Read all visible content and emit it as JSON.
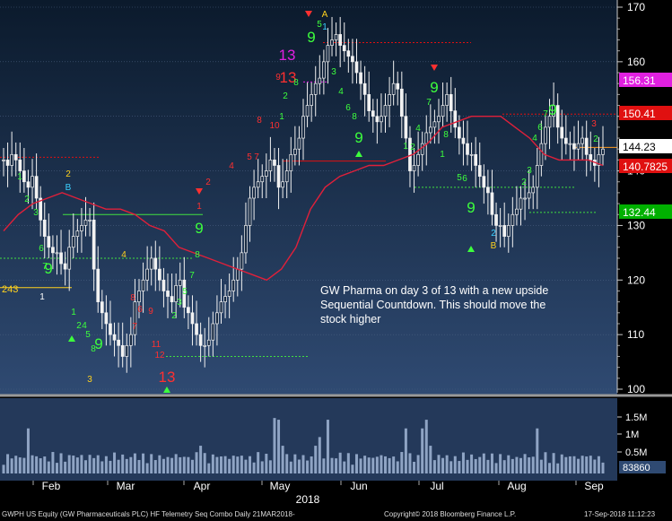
{
  "chart_data": {
    "type": "candlestick-with-indicators",
    "title": "",
    "ylim": [
      98,
      172
    ],
    "y_ticks": [
      "170",
      "160",
      "150",
      "140",
      "130",
      "120",
      "110",
      "100"
    ],
    "x_labels": [
      "Feb",
      "Mar",
      "Apr",
      "May",
      "Jun",
      "Jul",
      "Aug",
      "Sep"
    ],
    "year_label": "2018",
    "ohlc_close": [
      142,
      141,
      143,
      142,
      140,
      138,
      137,
      139,
      135,
      131,
      128,
      126,
      125,
      125,
      123,
      122,
      126,
      128,
      129,
      130,
      131,
      131,
      122,
      116,
      114,
      112,
      110,
      109,
      108,
      106,
      108,
      110,
      116,
      118,
      120,
      122,
      124,
      122,
      120,
      118,
      117,
      116,
      119,
      120,
      115,
      114,
      112,
      110,
      108,
      108,
      109,
      112,
      114,
      116,
      117,
      118,
      120,
      122,
      125,
      130,
      135,
      137,
      138,
      139,
      140,
      142,
      141,
      137,
      138,
      140,
      143,
      144,
      146,
      150,
      152,
      154,
      156,
      157,
      160,
      163,
      164,
      165,
      163,
      162,
      161,
      160,
      158,
      156,
      154,
      151,
      150,
      149,
      150,
      152,
      154,
      156,
      155,
      150,
      146,
      140,
      141,
      143,
      145,
      147,
      148,
      149,
      150,
      152,
      154,
      151,
      148,
      146,
      145,
      143,
      143,
      141,
      139,
      137,
      136,
      132,
      130,
      130,
      128,
      130,
      132,
      133,
      135,
      135,
      136,
      137,
      141,
      145,
      148,
      150,
      152,
      148,
      146,
      145,
      145,
      144,
      145,
      146,
      143,
      142,
      141,
      143,
      144
    ],
    "moving_average": [
      129,
      132,
      134,
      135,
      136,
      135,
      134,
      133,
      133,
      132,
      130,
      129,
      126,
      125,
      124,
      123,
      122,
      121,
      120,
      122,
      126,
      133,
      137,
      139,
      140,
      141,
      141,
      142,
      143,
      145,
      148,
      149,
      150,
      150,
      150,
      148,
      146,
      143,
      142,
      142,
      142,
      141
    ],
    "price_box_current": "144.23",
    "price_boxes": [
      {
        "value": "156.31",
        "color": "#e020e0"
      },
      {
        "value": "150.41",
        "color": "#e01010"
      },
      {
        "value": "144.23",
        "color": "#ffffff"
      },
      {
        "value": "140.7825",
        "color": "#e01010"
      },
      {
        "value": "132.44",
        "color": "#00b000"
      }
    ],
    "left_label": "243",
    "volume_ticks": [
      "1.5M",
      "1M",
      "0.5M"
    ],
    "volume_box": "83860",
    "annotation": "GW Pharma on day 3 of 13 with a new upside Sequential Countdown.  This should move the stock higher",
    "colors": {
      "up": "#ffffff",
      "down": "#ffffff",
      "ma": "#e0203a",
      "green_count": "#3dff3d",
      "red_count": "#ff3030",
      "magenta": "#e020e0",
      "yellow": "#ffd21e"
    }
  },
  "footer": {
    "security": "GWPH US Equity (GW Pharmaceuticals PLC) HF Telemetry Seq Combo  Daily 21MAR2018-",
    "copyright": "Copyright© 2018 Bloomberg Finance L.P.",
    "timestamp": "17-Sep-2018 11:12:23"
  }
}
